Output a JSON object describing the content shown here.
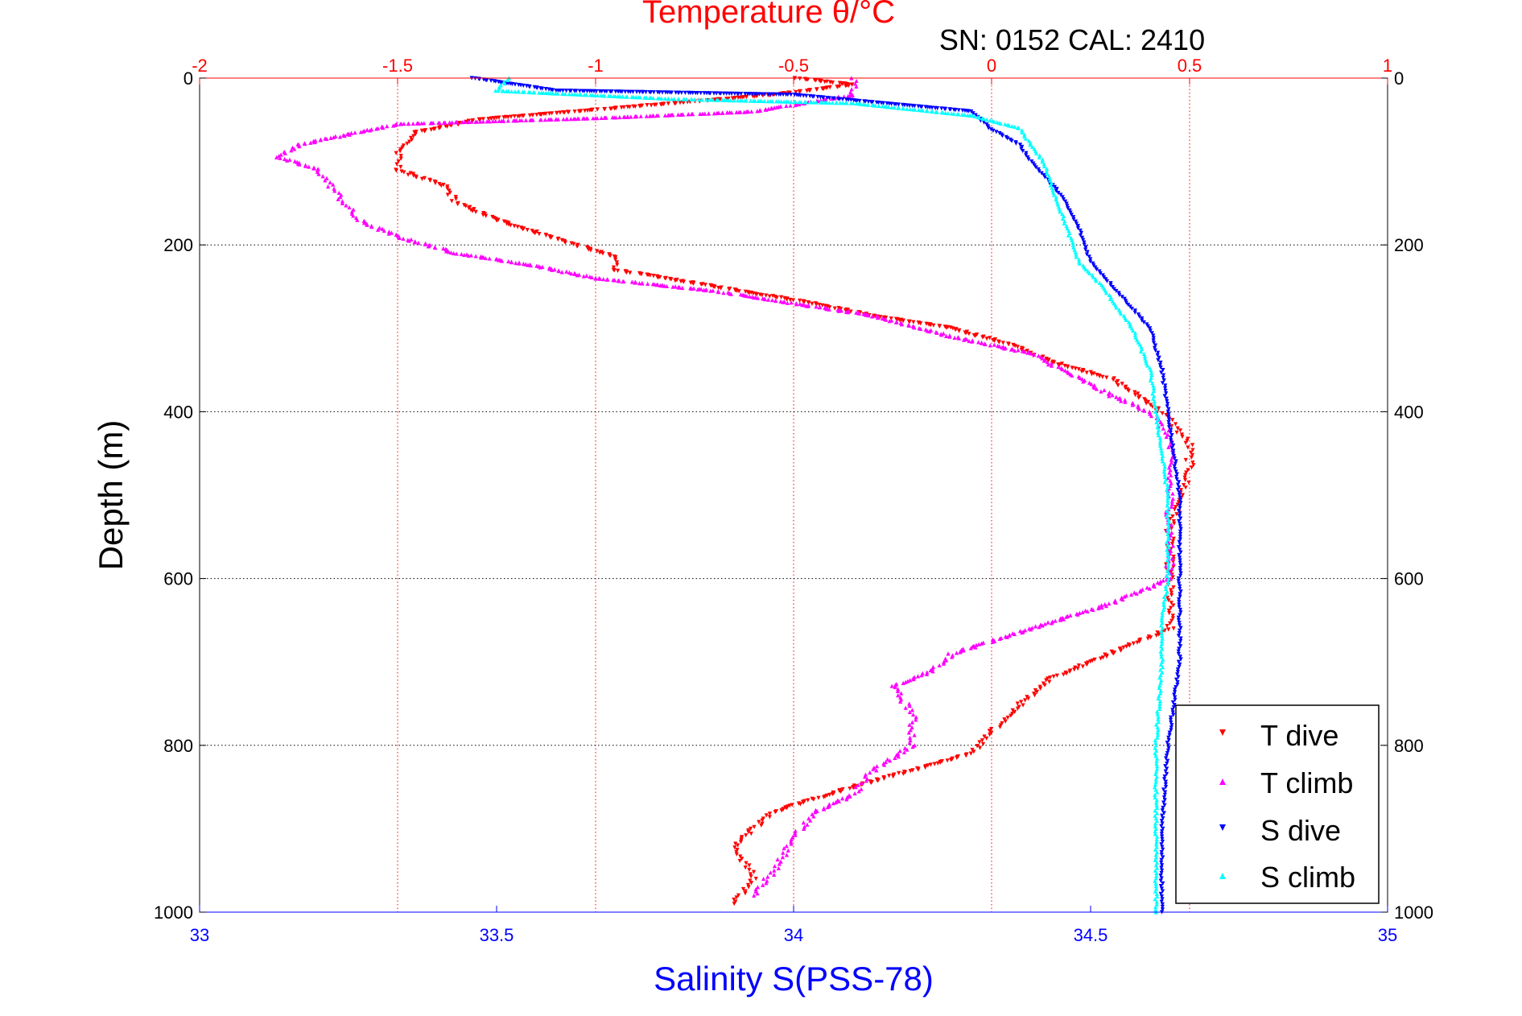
{
  "chart_data": {
    "type": "scatter",
    "title": "Temperature θ/°C",
    "subtitle": "SN: 0152  CAL: 2410",
    "ylabel": "Depth (m)",
    "xlabel": "Salinity S(PSS-78)",
    "y_axis": {
      "range": [
        1000,
        0
      ],
      "ticks": [
        "0",
        "200",
        "400",
        "600",
        "800",
        "1000"
      ]
    },
    "x_top": {
      "range": [
        -2,
        1
      ],
      "ticks": [
        "-2",
        "-1.5",
        "-1",
        "-0.5",
        "0",
        "0.5",
        "1"
      ]
    },
    "x_bottom": {
      "range": [
        33,
        35
      ],
      "ticks": [
        "33",
        "33.5",
        "34",
        "34.5",
        "35"
      ]
    },
    "grid": true,
    "legend_placement": "bottom-right",
    "colors": {
      "title": "#ff0000",
      "temp_axis": "#ff0000",
      "salinity_axis": "#0000ff"
    },
    "series": [
      {
        "name": "T dive",
        "axis": "temperature",
        "marker": "triangle-down",
        "color": "#ff0000",
        "points": [
          [
            -0.5,
            0
          ],
          [
            -0.35,
            8
          ],
          [
            -0.55,
            20
          ],
          [
            -1.05,
            40
          ],
          [
            -1.3,
            50
          ],
          [
            -1.45,
            65
          ],
          [
            -1.5,
            90
          ],
          [
            -1.5,
            110
          ],
          [
            -1.38,
            130
          ],
          [
            -1.35,
            150
          ],
          [
            -1.25,
            170
          ],
          [
            -1.05,
            200
          ],
          [
            -0.95,
            215
          ],
          [
            -0.95,
            230
          ],
          [
            -0.7,
            250
          ],
          [
            -0.45,
            270
          ],
          [
            -0.3,
            285
          ],
          [
            -0.1,
            300
          ],
          [
            0.05,
            320
          ],
          [
            0.15,
            340
          ],
          [
            0.3,
            360
          ],
          [
            0.4,
            390
          ],
          [
            0.45,
            410
          ],
          [
            0.5,
            440
          ],
          [
            0.5,
            470
          ],
          [
            0.48,
            500
          ],
          [
            0.45,
            540
          ],
          [
            0.45,
            580
          ],
          [
            0.45,
            620
          ],
          [
            0.45,
            660
          ],
          [
            0.3,
            690
          ],
          [
            0.15,
            720
          ],
          [
            0.05,
            760
          ],
          [
            -0.05,
            810
          ],
          [
            -0.35,
            850
          ],
          [
            -0.55,
            880
          ],
          [
            -0.65,
            920
          ],
          [
            -0.6,
            960
          ],
          [
            -0.65,
            990
          ]
        ]
      },
      {
        "name": "T climb",
        "axis": "temperature",
        "marker": "triangle-up",
        "color": "#ff00ff",
        "points": [
          [
            -0.35,
            0
          ],
          [
            -0.35,
            20
          ],
          [
            -0.6,
            40
          ],
          [
            -1.0,
            48
          ],
          [
            -1.5,
            55
          ],
          [
            -1.75,
            80
          ],
          [
            -1.8,
            95
          ],
          [
            -1.7,
            110
          ],
          [
            -1.65,
            140
          ],
          [
            -1.6,
            170
          ],
          [
            -1.5,
            190
          ],
          [
            -1.35,
            210
          ],
          [
            -1.15,
            225
          ],
          [
            -1.0,
            240
          ],
          [
            -0.7,
            255
          ],
          [
            -0.5,
            270
          ],
          [
            -0.3,
            285
          ],
          [
            -0.1,
            310
          ],
          [
            0.1,
            330
          ],
          [
            0.2,
            355
          ],
          [
            0.3,
            380
          ],
          [
            0.4,
            400
          ],
          [
            0.45,
            430
          ],
          [
            0.45,
            470
          ],
          [
            0.45,
            520
          ],
          [
            0.45,
            570
          ],
          [
            0.45,
            600
          ],
          [
            0.3,
            630
          ],
          [
            0.1,
            660
          ],
          [
            -0.1,
            690
          ],
          [
            -0.15,
            710
          ],
          [
            -0.25,
            730
          ],
          [
            -0.2,
            760
          ],
          [
            -0.2,
            800
          ],
          [
            -0.3,
            830
          ],
          [
            -0.35,
            860
          ],
          [
            -0.45,
            880
          ],
          [
            -0.5,
            910
          ],
          [
            -0.55,
            950
          ],
          [
            -0.6,
            980
          ]
        ]
      },
      {
        "name": "S dive",
        "axis": "salinity",
        "marker": "triangle-down",
        "color": "#0000ff",
        "points": [
          [
            33.46,
            0
          ],
          [
            33.6,
            15
          ],
          [
            34.0,
            20
          ],
          [
            34.3,
            40
          ],
          [
            34.33,
            60
          ],
          [
            34.38,
            80
          ],
          [
            34.4,
            100
          ],
          [
            34.45,
            140
          ],
          [
            34.48,
            180
          ],
          [
            34.5,
            220
          ],
          [
            34.55,
            260
          ],
          [
            34.6,
            300
          ],
          [
            34.62,
            350
          ],
          [
            34.63,
            400
          ],
          [
            34.64,
            450
          ],
          [
            34.65,
            500
          ],
          [
            34.65,
            550
          ],
          [
            34.65,
            600
          ],
          [
            34.65,
            650
          ],
          [
            34.65,
            700
          ],
          [
            34.63,
            800
          ],
          [
            34.62,
            900
          ],
          [
            34.62,
            1000
          ]
        ]
      },
      {
        "name": "S climb",
        "axis": "salinity",
        "marker": "triangle-up",
        "color": "#00ffff",
        "points": [
          [
            33.52,
            0
          ],
          [
            33.5,
            15
          ],
          [
            33.8,
            25
          ],
          [
            34.1,
            30
          ],
          [
            34.3,
            45
          ],
          [
            34.38,
            60
          ],
          [
            34.4,
            80
          ],
          [
            34.42,
            100
          ],
          [
            34.44,
            140
          ],
          [
            34.46,
            180
          ],
          [
            34.48,
            220
          ],
          [
            34.52,
            250
          ],
          [
            34.57,
            300
          ],
          [
            34.6,
            350
          ],
          [
            34.61,
            400
          ],
          [
            34.62,
            450
          ],
          [
            34.63,
            500
          ],
          [
            34.63,
            550
          ],
          [
            34.63,
            600
          ],
          [
            34.62,
            650
          ],
          [
            34.62,
            700
          ],
          [
            34.61,
            800
          ],
          [
            34.61,
            900
          ],
          [
            34.61,
            1000
          ]
        ]
      }
    ]
  }
}
